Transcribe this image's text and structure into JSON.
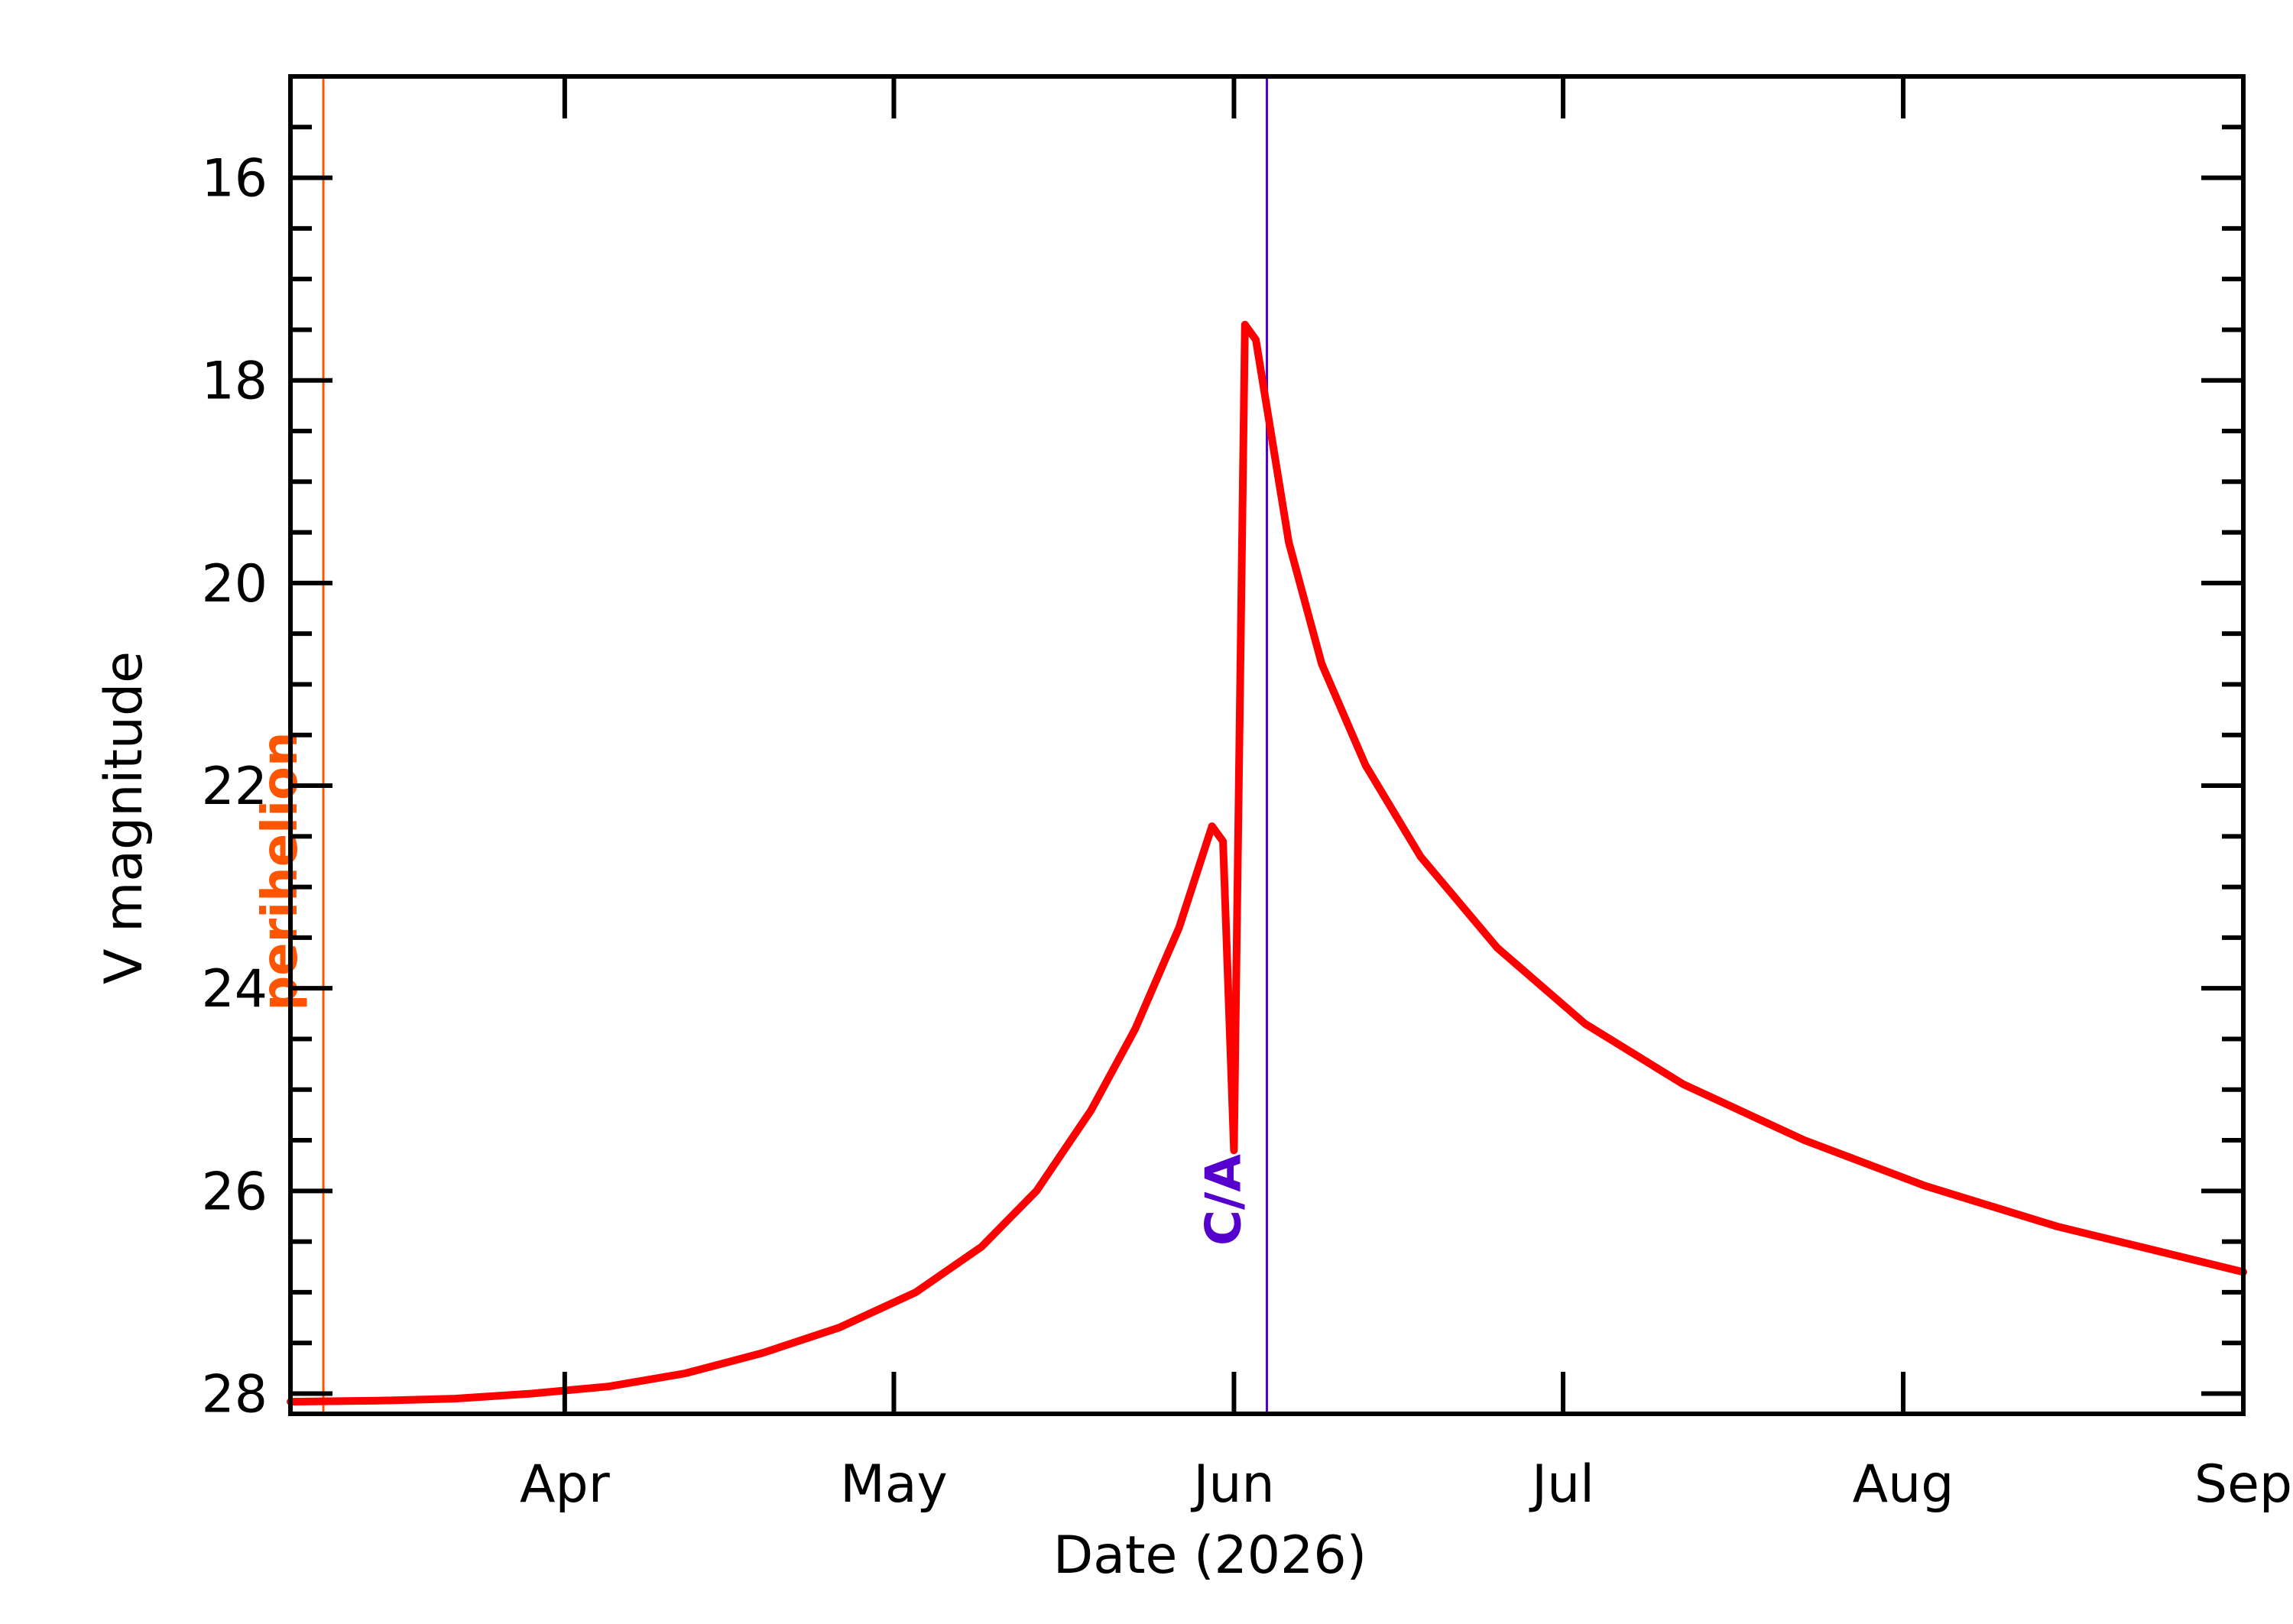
{
  "chart_data": {
    "type": "line",
    "title": "",
    "xlabel": "Date (2026)",
    "ylabel": "V magnitude",
    "xlim": [
      "2026-03-07",
      "2026-09-01"
    ],
    "ylim": [
      28.2,
      15.0
    ],
    "y_inverted": true,
    "grid": false,
    "legend": "none",
    "x_ticks": [
      {
        "date": "2026-04-01",
        "label": "Apr"
      },
      {
        "date": "2026-05-01",
        "label": "May"
      },
      {
        "date": "2026-06-01",
        "label": "Jun"
      },
      {
        "date": "2026-07-01",
        "label": "Jul"
      },
      {
        "date": "2026-08-01",
        "label": "Aug"
      },
      {
        "date": "2026-09-01",
        "label": "Sep"
      }
    ],
    "y_ticks": [
      {
        "value": 16,
        "label": "16"
      },
      {
        "value": 18,
        "label": "18"
      },
      {
        "value": 20,
        "label": "20"
      },
      {
        "value": 22,
        "label": "22"
      },
      {
        "value": 24,
        "label": "24"
      },
      {
        "value": 26,
        "label": "26"
      },
      {
        "value": 28,
        "label": "28"
      }
    ],
    "markers": [
      {
        "label": "perihelion",
        "date": "2026-03-10",
        "color": "#ff5500"
      },
      {
        "label": "C/A",
        "date": "2026-06-04",
        "color": "#5500cc"
      }
    ],
    "series": [
      {
        "color": "#ff0000",
        "points": [
          [
            "2026-03-07",
            28.08
          ],
          [
            "2026-03-15",
            28.07
          ],
          [
            "2026-03-22",
            28.05
          ],
          [
            "2026-03-29",
            28.0
          ],
          [
            "2026-04-05",
            27.93
          ],
          [
            "2026-04-12",
            27.8
          ],
          [
            "2026-04-19",
            27.6
          ],
          [
            "2026-04-26",
            27.35
          ],
          [
            "2026-05-03",
            27.0
          ],
          [
            "2026-05-09",
            26.55
          ],
          [
            "2026-05-14",
            26.0
          ],
          [
            "2026-05-19",
            25.2
          ],
          [
            "2026-05-23",
            24.4
          ],
          [
            "2026-05-27",
            23.4
          ],
          [
            "2026-05-30",
            22.4
          ],
          [
            "2026-05-31",
            22.55
          ],
          [
            "2026-06-01",
            25.6
          ],
          [
            "2026-06-02",
            17.45
          ],
          [
            "2026-06-03",
            17.6
          ],
          [
            "2026-06-06",
            19.6
          ],
          [
            "2026-06-09",
            20.8
          ],
          [
            "2026-06-13",
            21.8
          ],
          [
            "2026-06-18",
            22.7
          ],
          [
            "2026-06-25",
            23.6
          ],
          [
            "2026-07-03",
            24.35
          ],
          [
            "2026-07-12",
            24.95
          ],
          [
            "2026-07-23",
            25.5
          ],
          [
            "2026-08-03",
            25.95
          ],
          [
            "2026-08-15",
            26.35
          ],
          [
            "2026-09-01",
            26.8
          ]
        ]
      }
    ]
  }
}
